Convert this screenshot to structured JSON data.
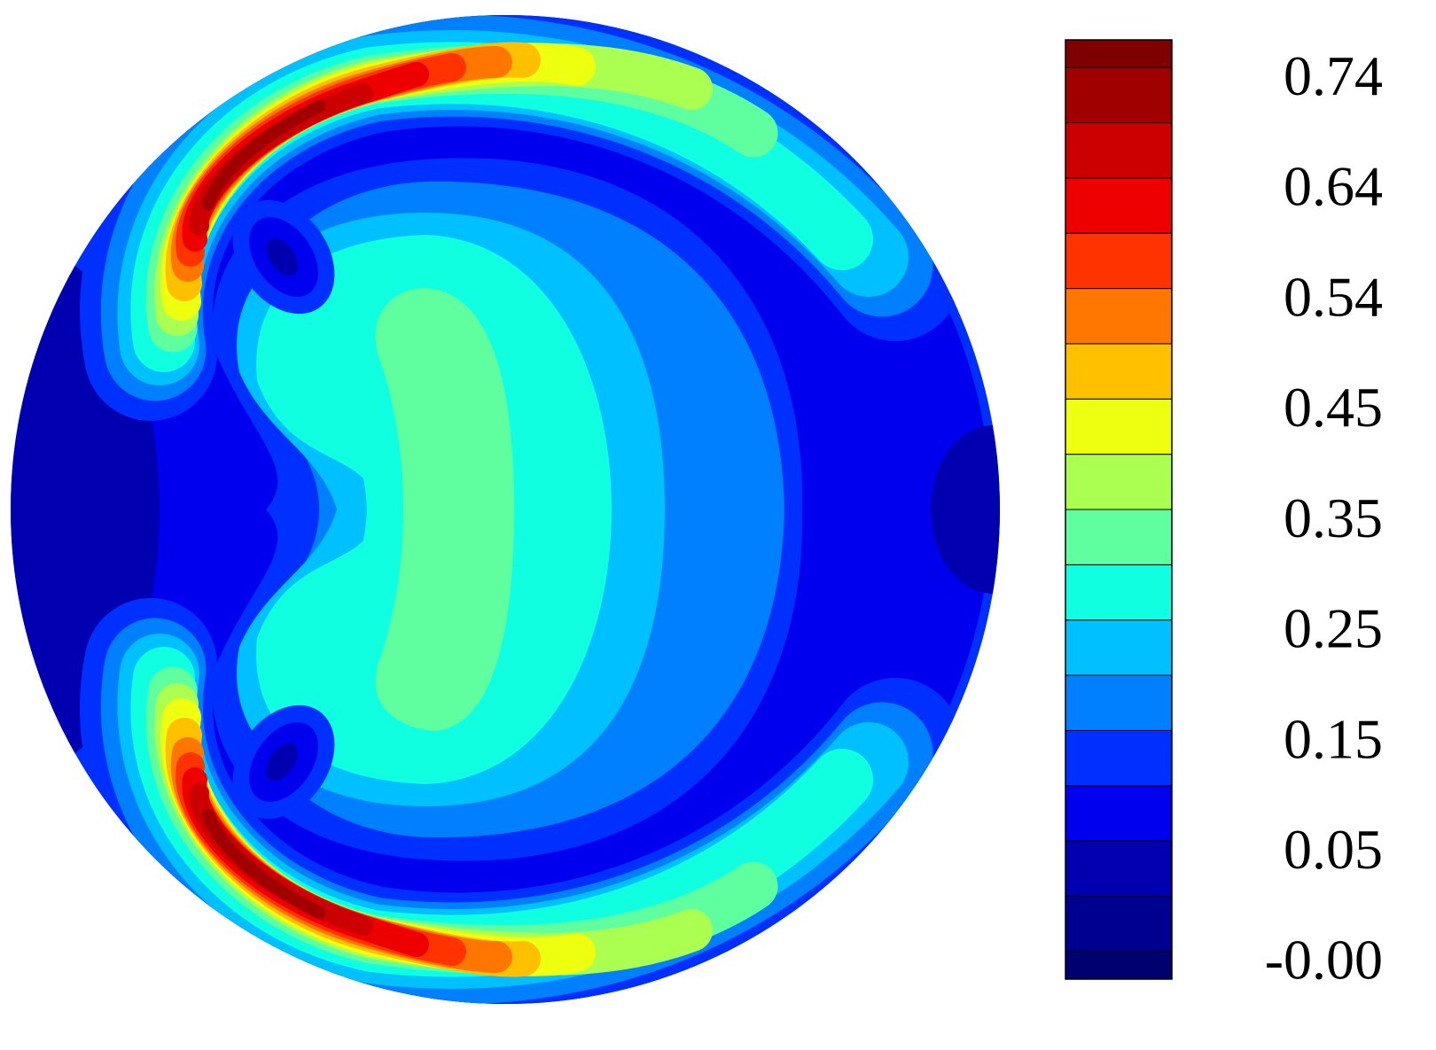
{
  "chart_data": {
    "type": "contour",
    "colorbar": {
      "colors": [
        "#000070",
        "#000090",
        "#0000b0",
        "#0000ee",
        "#0030ff",
        "#0080ff",
        "#00c0ff",
        "#10ffe0",
        "#5fff9f",
        "#aaff50",
        "#eeff10",
        "#ffc000",
        "#ff7700",
        "#ff3300",
        "#ee0000",
        "#cc0000",
        "#a00000",
        "#7f0000"
      ],
      "labels": [
        "-0.00",
        "0.05",
        "0.15",
        "0.25",
        "0.35",
        "0.45",
        "0.54",
        "0.64",
        "0.74"
      ]
    }
  }
}
